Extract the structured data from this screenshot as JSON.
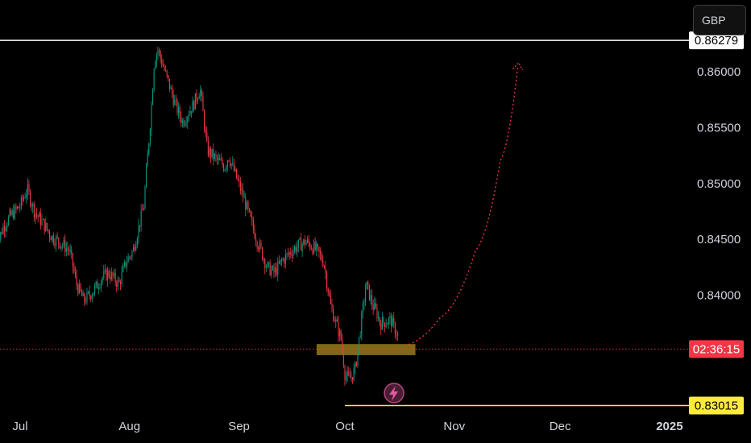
{
  "currency": "GBP",
  "chart_data": {
    "type": "candlestick",
    "y_axis": {
      "range": [
        0.8268,
        0.8664
      ],
      "ticks": [
        "0.84000",
        "0.84500",
        "0.85000",
        "0.85500",
        "0.86000"
      ],
      "side": "right"
    },
    "x_axis": {
      "ticks": [
        {
          "label": "Jul",
          "date": "2024-07-01"
        },
        {
          "label": "Aug",
          "date": "2024-08-01"
        },
        {
          "label": "Sep",
          "date": "2024-09-01"
        },
        {
          "label": "Oct",
          "date": "2024-10-01"
        },
        {
          "label": "Nov",
          "date": "2024-11-01"
        },
        {
          "label": "Dec",
          "date": "2024-12-01"
        },
        {
          "label": "2025",
          "date": "2025-01-01",
          "bold": true
        }
      ]
    },
    "price_path": [
      [
        "2024-06-24",
        0.844
      ],
      [
        "2024-06-26",
        0.846
      ],
      [
        "2024-06-28",
        0.847
      ],
      [
        "2024-07-01",
        0.848
      ],
      [
        "2024-07-03",
        0.8495
      ],
      [
        "2024-07-05",
        0.8475
      ],
      [
        "2024-07-08",
        0.8462
      ],
      [
        "2024-07-10",
        0.8452
      ],
      [
        "2024-07-12",
        0.8448
      ],
      [
        "2024-07-15",
        0.844
      ],
      [
        "2024-07-17",
        0.841
      ],
      [
        "2024-07-19",
        0.8395
      ],
      [
        "2024-07-22",
        0.8405
      ],
      [
        "2024-07-24",
        0.8415
      ],
      [
        "2024-07-26",
        0.842
      ],
      [
        "2024-07-29",
        0.841
      ],
      [
        "2024-07-31",
        0.843
      ],
      [
        "2024-08-02",
        0.844
      ],
      [
        "2024-08-05",
        0.848
      ],
      [
        "2024-08-07",
        0.856
      ],
      [
        "2024-08-08",
        0.861
      ],
      [
        "2024-08-09",
        0.862
      ],
      [
        "2024-08-12",
        0.859
      ],
      [
        "2024-08-14",
        0.857
      ],
      [
        "2024-08-16",
        0.8555
      ],
      [
        "2024-08-19",
        0.857
      ],
      [
        "2024-08-21",
        0.8585
      ],
      [
        "2024-08-23",
        0.853
      ],
      [
        "2024-08-26",
        0.852
      ],
      [
        "2024-08-28",
        0.8515
      ],
      [
        "2024-08-29",
        0.8525
      ],
      [
        "2024-09-02",
        0.849
      ],
      [
        "2024-09-04",
        0.847
      ],
      [
        "2024-09-06",
        0.845
      ],
      [
        "2024-09-09",
        0.8425
      ],
      [
        "2024-09-11",
        0.842
      ],
      [
        "2024-09-13",
        0.843
      ],
      [
        "2024-09-16",
        0.844
      ],
      [
        "2024-09-18",
        0.8445
      ],
      [
        "2024-09-20",
        0.8448
      ],
      [
        "2024-09-23",
        0.844
      ],
      [
        "2024-09-25",
        0.843
      ],
      [
        "2024-09-26",
        0.841
      ],
      [
        "2024-09-27",
        0.839
      ],
      [
        "2024-09-30",
        0.836
      ],
      [
        "2024-10-01",
        0.833
      ],
      [
        "2024-10-02",
        0.8325
      ],
      [
        "2024-10-03",
        0.8328
      ],
      [
        "2024-10-04",
        0.8335
      ],
      [
        "2024-10-07",
        0.841
      ],
      [
        "2024-10-08",
        0.84
      ],
      [
        "2024-10-09",
        0.839
      ],
      [
        "2024-10-10",
        0.8385
      ],
      [
        "2024-10-11",
        0.8375
      ],
      [
        "2024-10-14",
        0.8378
      ],
      [
        "2024-10-15",
        0.837
      ],
      [
        "2024-10-16",
        0.8365
      ]
    ],
    "horizontal_lines": [
      {
        "name": "resistance",
        "price": 0.86279,
        "label": "0.86279",
        "color": "#ffffff",
        "from": "2024-06-24"
      },
      {
        "name": "support",
        "price": 0.83015,
        "label": "0.83015",
        "color": "#ffeb3b",
        "from": "2024-10-01"
      },
      {
        "name": "current-price",
        "price": 0.8352,
        "label": "02:36:15",
        "color": "#f23645",
        "dotted": true,
        "from": "2024-06-24"
      }
    ],
    "zone": {
      "price_top": 0.8355,
      "price_bottom": 0.8348,
      "from": "2024-09-23",
      "to": "2024-10-21",
      "color": "#8d7418"
    },
    "projection": {
      "color": "#f23645",
      "dotted": true,
      "points": [
        [
          "2024-10-18",
          0.8355
        ],
        [
          "2024-10-28",
          0.838
        ],
        [
          "2024-11-07",
          0.844
        ],
        [
          "2024-11-14",
          0.852
        ],
        [
          "2024-11-19",
          0.8605
        ]
      ]
    },
    "colors": {
      "up": "#089981",
      "down": "#f23645",
      "background": "#000000",
      "axis_text": "#d1d4dc"
    }
  }
}
